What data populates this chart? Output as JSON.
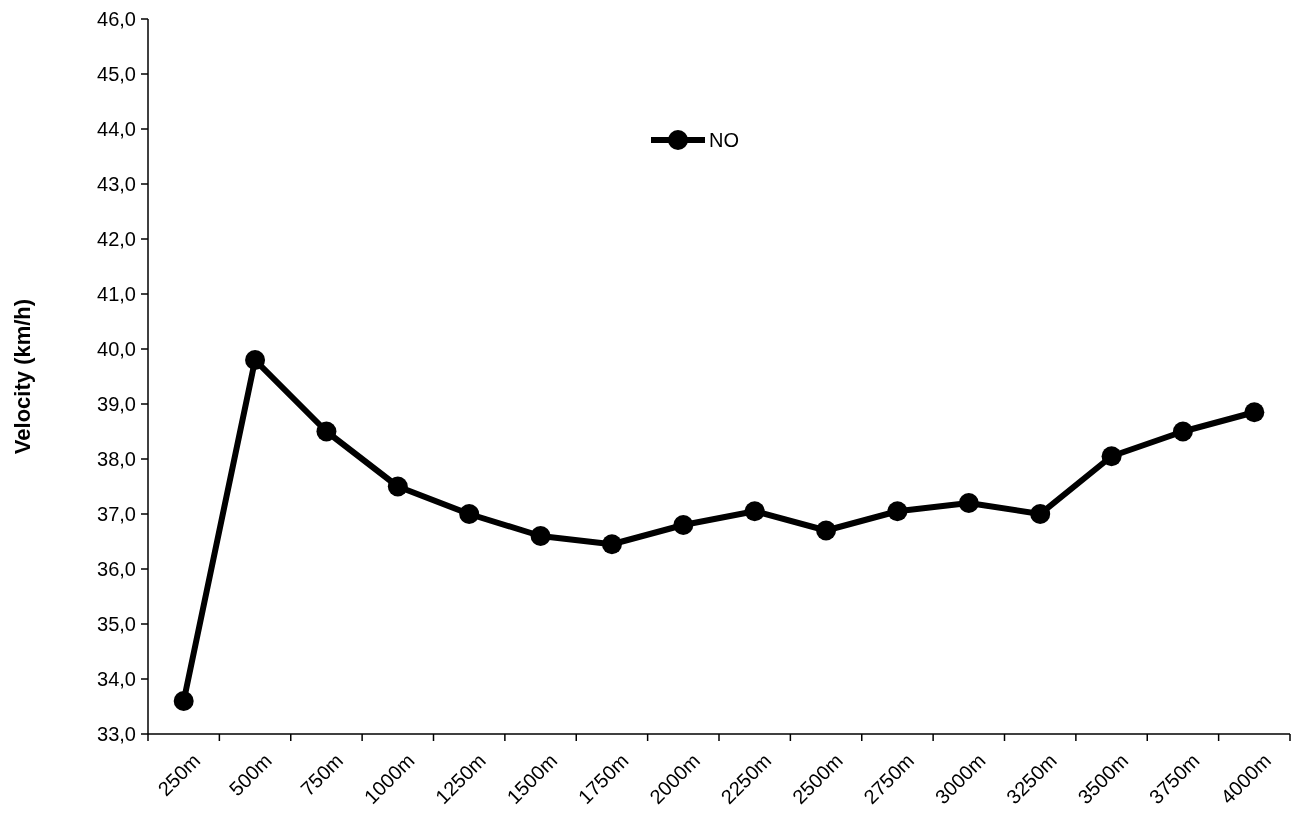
{
  "chart_data": {
    "type": "line",
    "ylabel": "Velocity (km/h)",
    "categories": [
      "250m",
      "500m",
      "750m",
      "1000m",
      "1250m",
      "1500m",
      "1750m",
      "2000m",
      "2250m",
      "2500m",
      "2750m",
      "3000m",
      "3250m",
      "3500m",
      "3750m",
      "4000m"
    ],
    "series": [
      {
        "name": "NO",
        "color": "#000000",
        "values": [
          33.6,
          39.8,
          38.5,
          37.5,
          37.0,
          36.6,
          36.45,
          36.8,
          37.05,
          36.7,
          37.05,
          37.2,
          37.0,
          38.05,
          38.5,
          38.85
        ]
      }
    ],
    "ylim": [
      33,
      46
    ],
    "yticks": [
      {
        "value": 33,
        "label": "33,0"
      },
      {
        "value": 34,
        "label": "34,0"
      },
      {
        "value": 35,
        "label": "35,0"
      },
      {
        "value": 36,
        "label": "36,0"
      },
      {
        "value": 37,
        "label": "37,0"
      },
      {
        "value": 38,
        "label": "38,0"
      },
      {
        "value": 39,
        "label": "39,0"
      },
      {
        "value": 40,
        "label": "40,0"
      },
      {
        "value": 41,
        "label": "41,0"
      },
      {
        "value": 42,
        "label": "42,0"
      },
      {
        "value": 43,
        "label": "43,0"
      },
      {
        "value": 44,
        "label": "44,0"
      },
      {
        "value": 45,
        "label": "45,0"
      },
      {
        "value": 46,
        "label": "46,0"
      }
    ],
    "legend": "top",
    "marker": "circle",
    "line_style": "solid"
  }
}
